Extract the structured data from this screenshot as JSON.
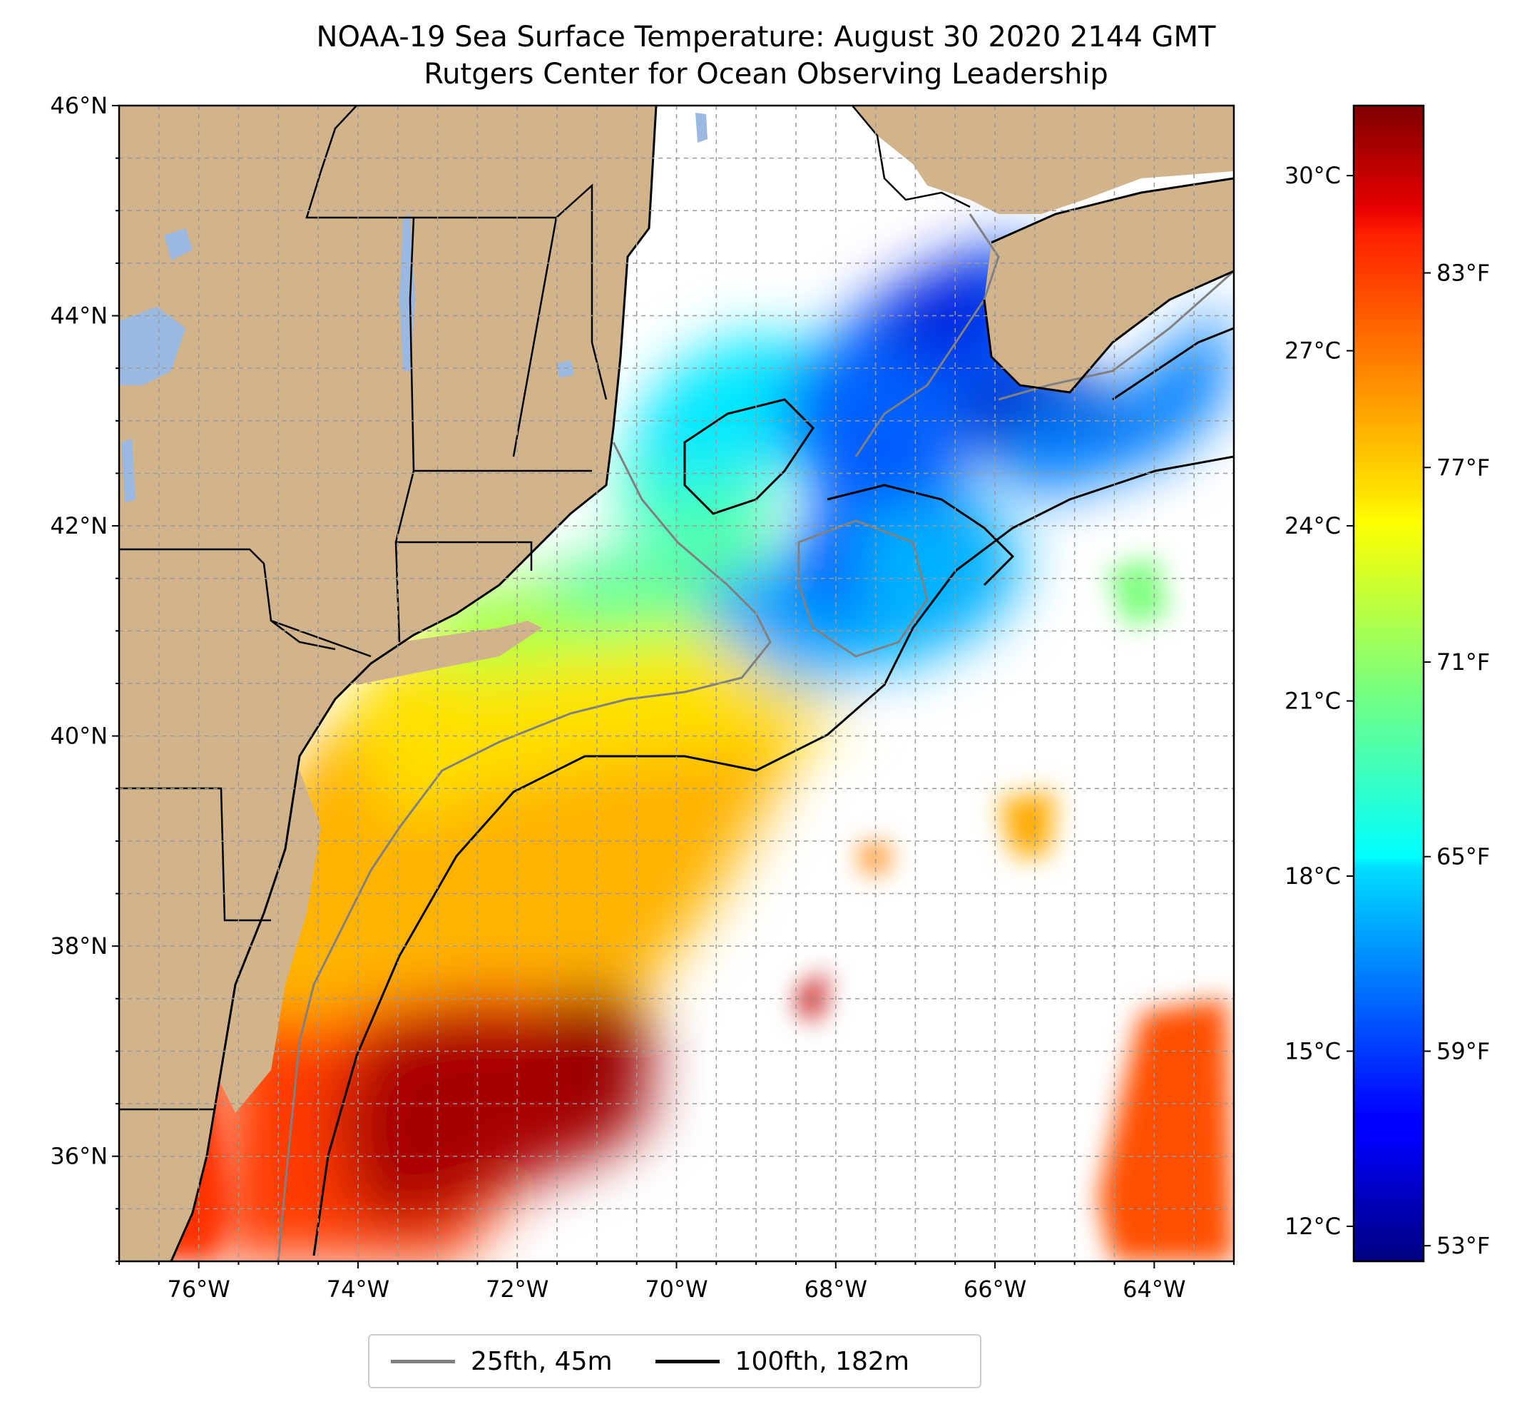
{
  "title": "NOAA-19 Sea Surface Temperature: August 30 2020 2144 GMT",
  "subtitle": "Rutgers Center for Ocean Observing Leadership",
  "map": {
    "lon_range": [
      -77,
      -63
    ],
    "lat_range": [
      35,
      46
    ],
    "x_ticks": [
      {
        "value": -76,
        "label": "76°W"
      },
      {
        "value": -74,
        "label": "74°W"
      },
      {
        "value": -72,
        "label": "72°W"
      },
      {
        "value": -70,
        "label": "70°W"
      },
      {
        "value": -68,
        "label": "68°W"
      },
      {
        "value": -66,
        "label": "66°W"
      },
      {
        "value": -64,
        "label": "64°W"
      }
    ],
    "y_ticks": [
      {
        "value": 46,
        "label": "46°N"
      },
      {
        "value": 44,
        "label": "44°N"
      },
      {
        "value": 42,
        "label": "42°N"
      },
      {
        "value": 40,
        "label": "40°N"
      },
      {
        "value": 38,
        "label": "38°N"
      },
      {
        "value": 36,
        "label": "36°N"
      }
    ],
    "grid": true,
    "land_color": "#d2b48c",
    "lake_color": "#9bb8e0"
  },
  "colorbar": {
    "range_c": [
      11.4,
      31.2
    ],
    "celsius_ticks": [
      {
        "value": 30,
        "label": "30°C"
      },
      {
        "value": 27,
        "label": "27°C"
      },
      {
        "value": 24,
        "label": "24°C"
      },
      {
        "value": 21,
        "label": "21°C"
      },
      {
        "value": 18,
        "label": "18°C"
      },
      {
        "value": 15,
        "label": "15°C"
      },
      {
        "value": 12,
        "label": "12°C"
      }
    ],
    "fahrenheit_ticks": [
      {
        "value": 83,
        "label": "83°F"
      },
      {
        "value": 77,
        "label": "77°F"
      },
      {
        "value": 71,
        "label": "71°F"
      },
      {
        "value": 65,
        "label": "65°F"
      },
      {
        "value": 59,
        "label": "59°F"
      },
      {
        "value": 53,
        "label": "53°F"
      }
    ]
  },
  "legend": {
    "items": [
      {
        "label": "25fth, 45m",
        "color": "#808080"
      },
      {
        "label": "100fth, 182m",
        "color": "#000000"
      }
    ]
  }
}
